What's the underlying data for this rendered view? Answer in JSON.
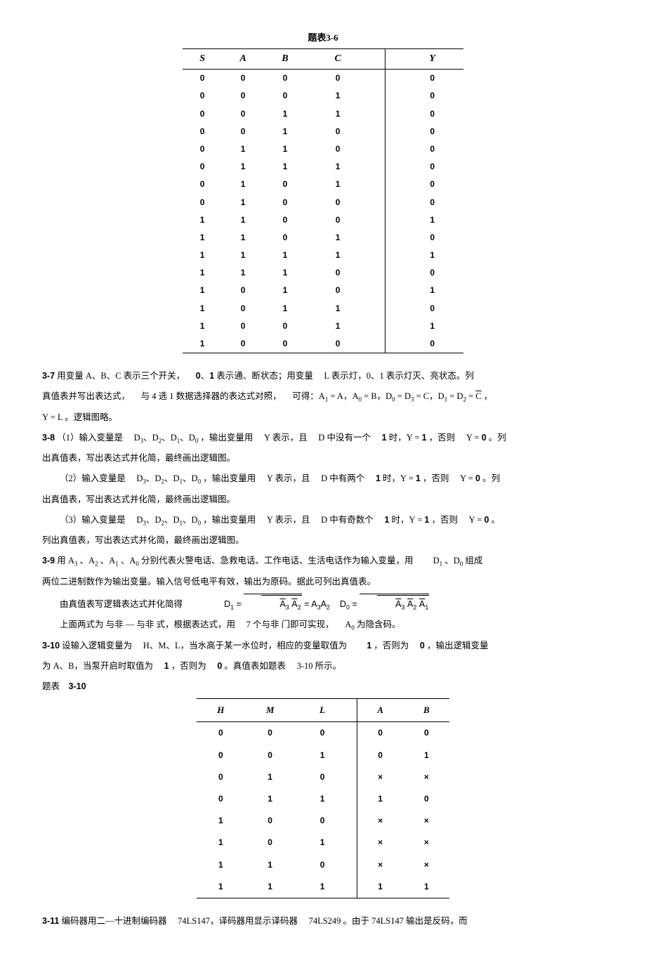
{
  "table36": {
    "caption": "题表3-6",
    "headers": [
      "S",
      "A",
      "B",
      "C",
      "Y"
    ],
    "rows": [
      [
        "0",
        "0",
        "0",
        "0",
        "0"
      ],
      [
        "0",
        "0",
        "0",
        "1",
        "0"
      ],
      [
        "0",
        "0",
        "1",
        "1",
        "0"
      ],
      [
        "0",
        "0",
        "1",
        "0",
        "0"
      ],
      [
        "0",
        "1",
        "1",
        "0",
        "0"
      ],
      [
        "0",
        "1",
        "1",
        "1",
        "0"
      ],
      [
        "0",
        "1",
        "0",
        "1",
        "0"
      ],
      [
        "0",
        "1",
        "0",
        "0",
        "0"
      ],
      [
        "1",
        "1",
        "0",
        "0",
        "1"
      ],
      [
        "1",
        "1",
        "0",
        "1",
        "0"
      ],
      [
        "1",
        "1",
        "1",
        "1",
        "1"
      ],
      [
        "1",
        "1",
        "1",
        "0",
        "0"
      ],
      [
        "1",
        "0",
        "1",
        "0",
        "1"
      ],
      [
        "1",
        "0",
        "1",
        "1",
        "0"
      ],
      [
        "1",
        "0",
        "0",
        "1",
        "1"
      ],
      [
        "1",
        "0",
        "0",
        "0",
        "0"
      ]
    ]
  },
  "p37_a": "用变量 A、B、C 表示三个开关，",
  "p37_b": "、",
  "p37_c": " 表示通、断状态；用变量",
  "p37_d": "L 表示灯，0、1 表示灯灭、亮状态。列",
  "p37_e": "真值表并写出表达式，",
  "p37_f": "与 4 选 1 数据选择器的表达式对照，",
  "p37_g": "可得：A",
  "p37_h": "= A，A",
  "p37_i": "= B，D",
  "p37_j": "= D",
  "p37_k": " = C，D",
  "p37_l": " = D",
  "p37_m": " = ",
  "p37_n": "C",
  "p37_o": "，",
  "p37_p": "Y = L 。逻辑图略。",
  "lbl37": "3-7",
  "lbl38": "3-8",
  "p38_1a": "（1）输入变量是",
  "p38_1b": "D",
  "p38_1c": "，输出变量用",
  "p38_1d": "Y 表示，且",
  "p38_1e": "D 中没有一个",
  "p38_1f": " 时，Y = ",
  "p38_1g": "，否则",
  "p38_1h": "Y = ",
  "p38_1i": "。列",
  "p38_1j": "出真值表，写出表达式并化简，最终画出逻辑图。",
  "p38_2a": "（2）输入变量是",
  "p38_2b": "D 中有两个",
  "p38_2c": "。列",
  "p38_3a": "（3）输入变量是",
  "p38_3b": "D 中有奇数个",
  "p38_3c": "。",
  "p38_3d": "列出真值表，写出表达式并化简，最终画出逻辑图。",
  "lbl39": "3-9",
  "p39_a": "用 A",
  "p39_b": "、A",
  "p39_c": " 分别代表火警电话、急救电话、工作电话、生活电话作为输入变量，用",
  "p39_d": "D",
  "p39_e": "、D",
  "p39_f": " 组成",
  "p39_g": "两位二进制数作为输出变量。输入信号低电平有效，输出为原码。据此可列出真值表。",
  "p39_h": "由真值表写逻辑表达式并化简得",
  "p39_i": "D",
  "p39_j": " = ",
  "p39_k": "A",
  "p39_l": " = A",
  "p39_m": "A",
  "p39_n": "D",
  "p39_o": " = ",
  "p39_p": "上面两式为 与非 — 与非 式，根据表达式，用",
  "p39_q": "7 个与非 门即可实现，",
  "p39_r": "A",
  "p39_s": " 为隐含码。",
  "lbl310": "3-10",
  "p310_a": "设输入逻辑变量为",
  "p310_b": "H、M、L，当水高于某一水位时，相应的变量取值为",
  "p310_c": "，否则为",
  "p310_d": "，输出逻辑变量",
  "p310_e": "为 A、B，当泵开启时取值为",
  "p310_f": "，否则为",
  "p310_g": "。真值表如题表",
  "p310_h": "3-10 所示。",
  "p310_i": "题表",
  "p310_j": "3-10",
  "table310": {
    "headers": [
      "H",
      "M",
      "L",
      "A",
      "B"
    ],
    "rows": [
      [
        "0",
        "0",
        "0",
        "0",
        "0"
      ],
      [
        "0",
        "0",
        "1",
        "0",
        "1"
      ],
      [
        "0",
        "1",
        "0",
        "×",
        "×"
      ],
      [
        "0",
        "1",
        "1",
        "1",
        "0"
      ],
      [
        "1",
        "0",
        "0",
        "×",
        "×"
      ],
      [
        "1",
        "0",
        "1",
        "×",
        "×"
      ],
      [
        "1",
        "1",
        "0",
        "×",
        "×"
      ],
      [
        "1",
        "1",
        "1",
        "1",
        "1"
      ]
    ]
  },
  "lbl311": "3-11",
  "p311_a": "编码器用二—十进制编码器",
  "p311_b": "74LS147，译码器用显示译码器",
  "p311_c": "74LS249 。由于 74LS147 输出是反码，而",
  "num0": "0",
  "num1": "1",
  "sub0": "0",
  "sub1": "1",
  "sub2": "2",
  "sub3": "3",
  "comma": "、"
}
